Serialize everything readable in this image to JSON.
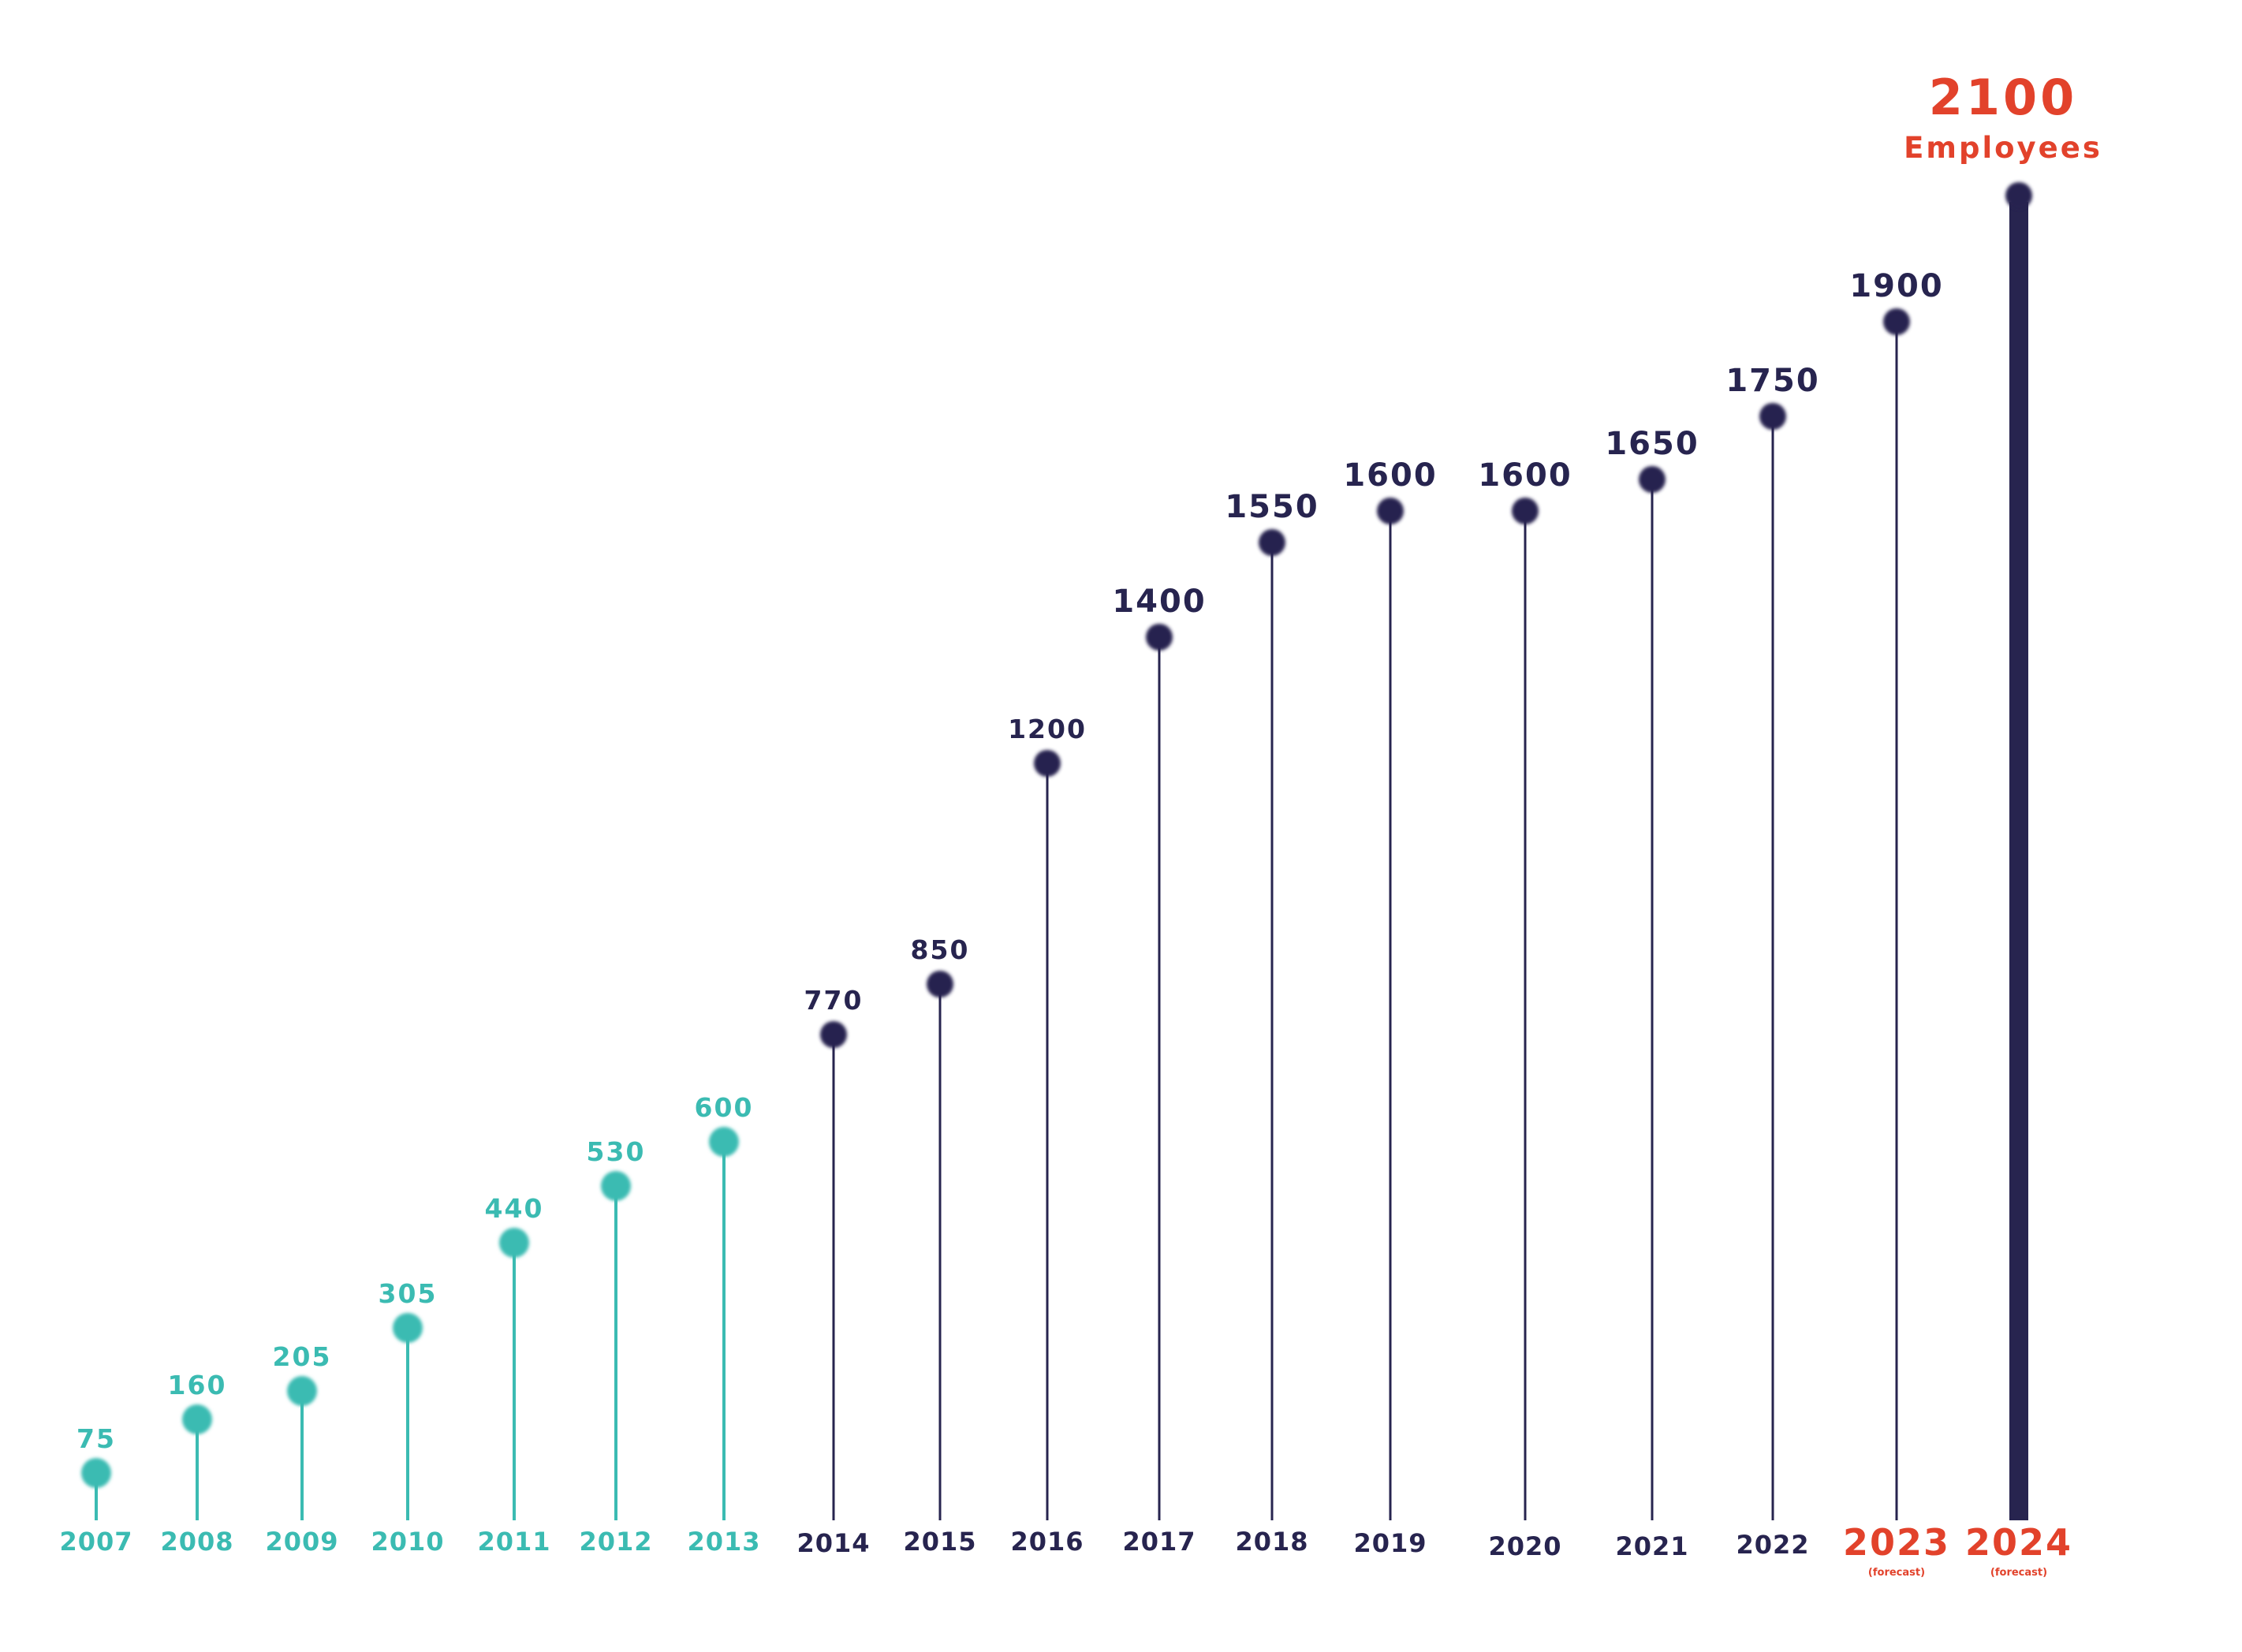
{
  "chart_data": {
    "type": "lollipop",
    "x": [
      "2007",
      "2008",
      "2009",
      "2010",
      "2011",
      "2012",
      "2013",
      "2014",
      "2015",
      "2016",
      "2017",
      "2018",
      "2019",
      "2020",
      "2021",
      "2022",
      "2023",
      "2024"
    ],
    "values": [
      75,
      160,
      205,
      305,
      440,
      530,
      600,
      770,
      850,
      1200,
      1400,
      1550,
      1600,
      1600,
      1650,
      1750,
      1900,
      2100
    ],
    "value_labels": [
      "75",
      "160",
      "205",
      "305",
      "440",
      "530",
      "600",
      "770",
      "850",
      "1200",
      "1400",
      "1550",
      "1600",
      "1600",
      "1650",
      "1750",
      "1900",
      "2100"
    ],
    "forecast_note": "(forecast)",
    "forecast_years": [
      "2023",
      "2024"
    ],
    "final_unit_label": "Employees",
    "title": "",
    "xlabel": "",
    "ylabel": "",
    "grid": false,
    "legend": "none",
    "colors": {
      "early": "#3bbbb2",
      "main": "#27244f",
      "highlight": "#e2422b"
    }
  }
}
